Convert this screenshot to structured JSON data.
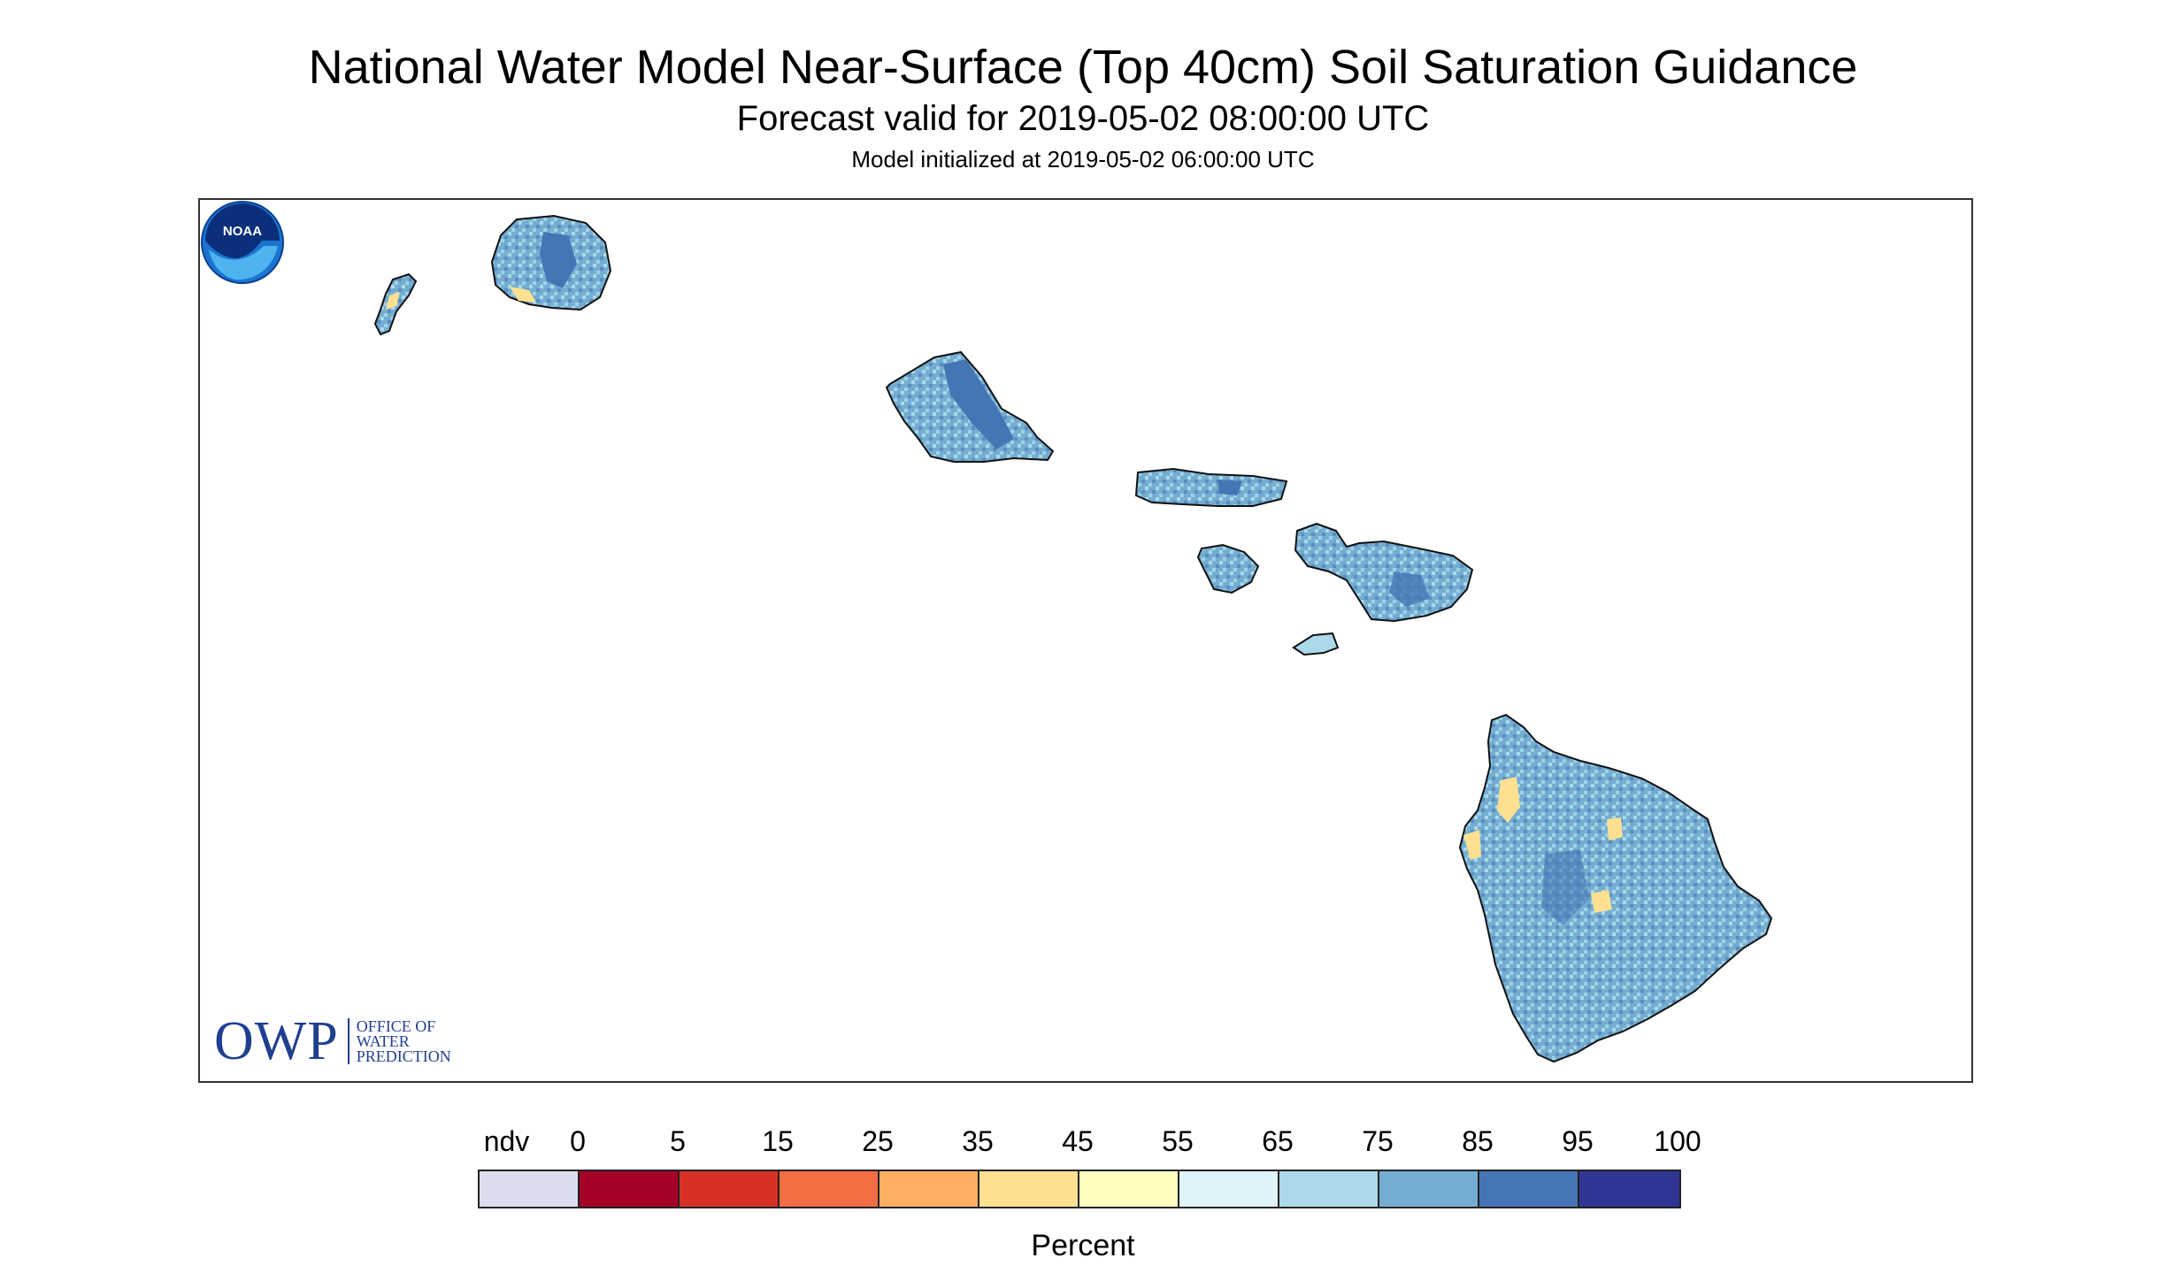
{
  "header": {
    "title": "National Water Model Near-Surface (Top 40cm) Soil Saturation Guidance",
    "subtitle": "Forecast valid for 2019-05-02 08:00:00 UTC",
    "init": "Model initialized at 2019-05-02 06:00:00 UTC"
  },
  "logos": {
    "owp_abbrev": "OWP",
    "owp_line1": "OFFICE OF",
    "owp_line2": "WATER",
    "owp_line3": "PREDICTION",
    "noaa": "NOAA"
  },
  "legend": {
    "labels": [
      "ndv",
      "0",
      "5",
      "15",
      "25",
      "35",
      "45",
      "55",
      "65",
      "75",
      "85",
      "95",
      "100"
    ],
    "colors": [
      "#dcdcef",
      "#a50026",
      "#d73027",
      "#f46d43",
      "#fdae61",
      "#fee090",
      "#ffffbf",
      "#e0f3f8",
      "#abd9e9",
      "#74add1",
      "#4575b4",
      "#313695"
    ],
    "title": "Percent"
  },
  "map": {
    "region": "Hawaii",
    "ocean_color": "#ffffff",
    "dominant_color": "#74add1",
    "wet_color": "#4575b4",
    "dry_color": "#fee090"
  }
}
